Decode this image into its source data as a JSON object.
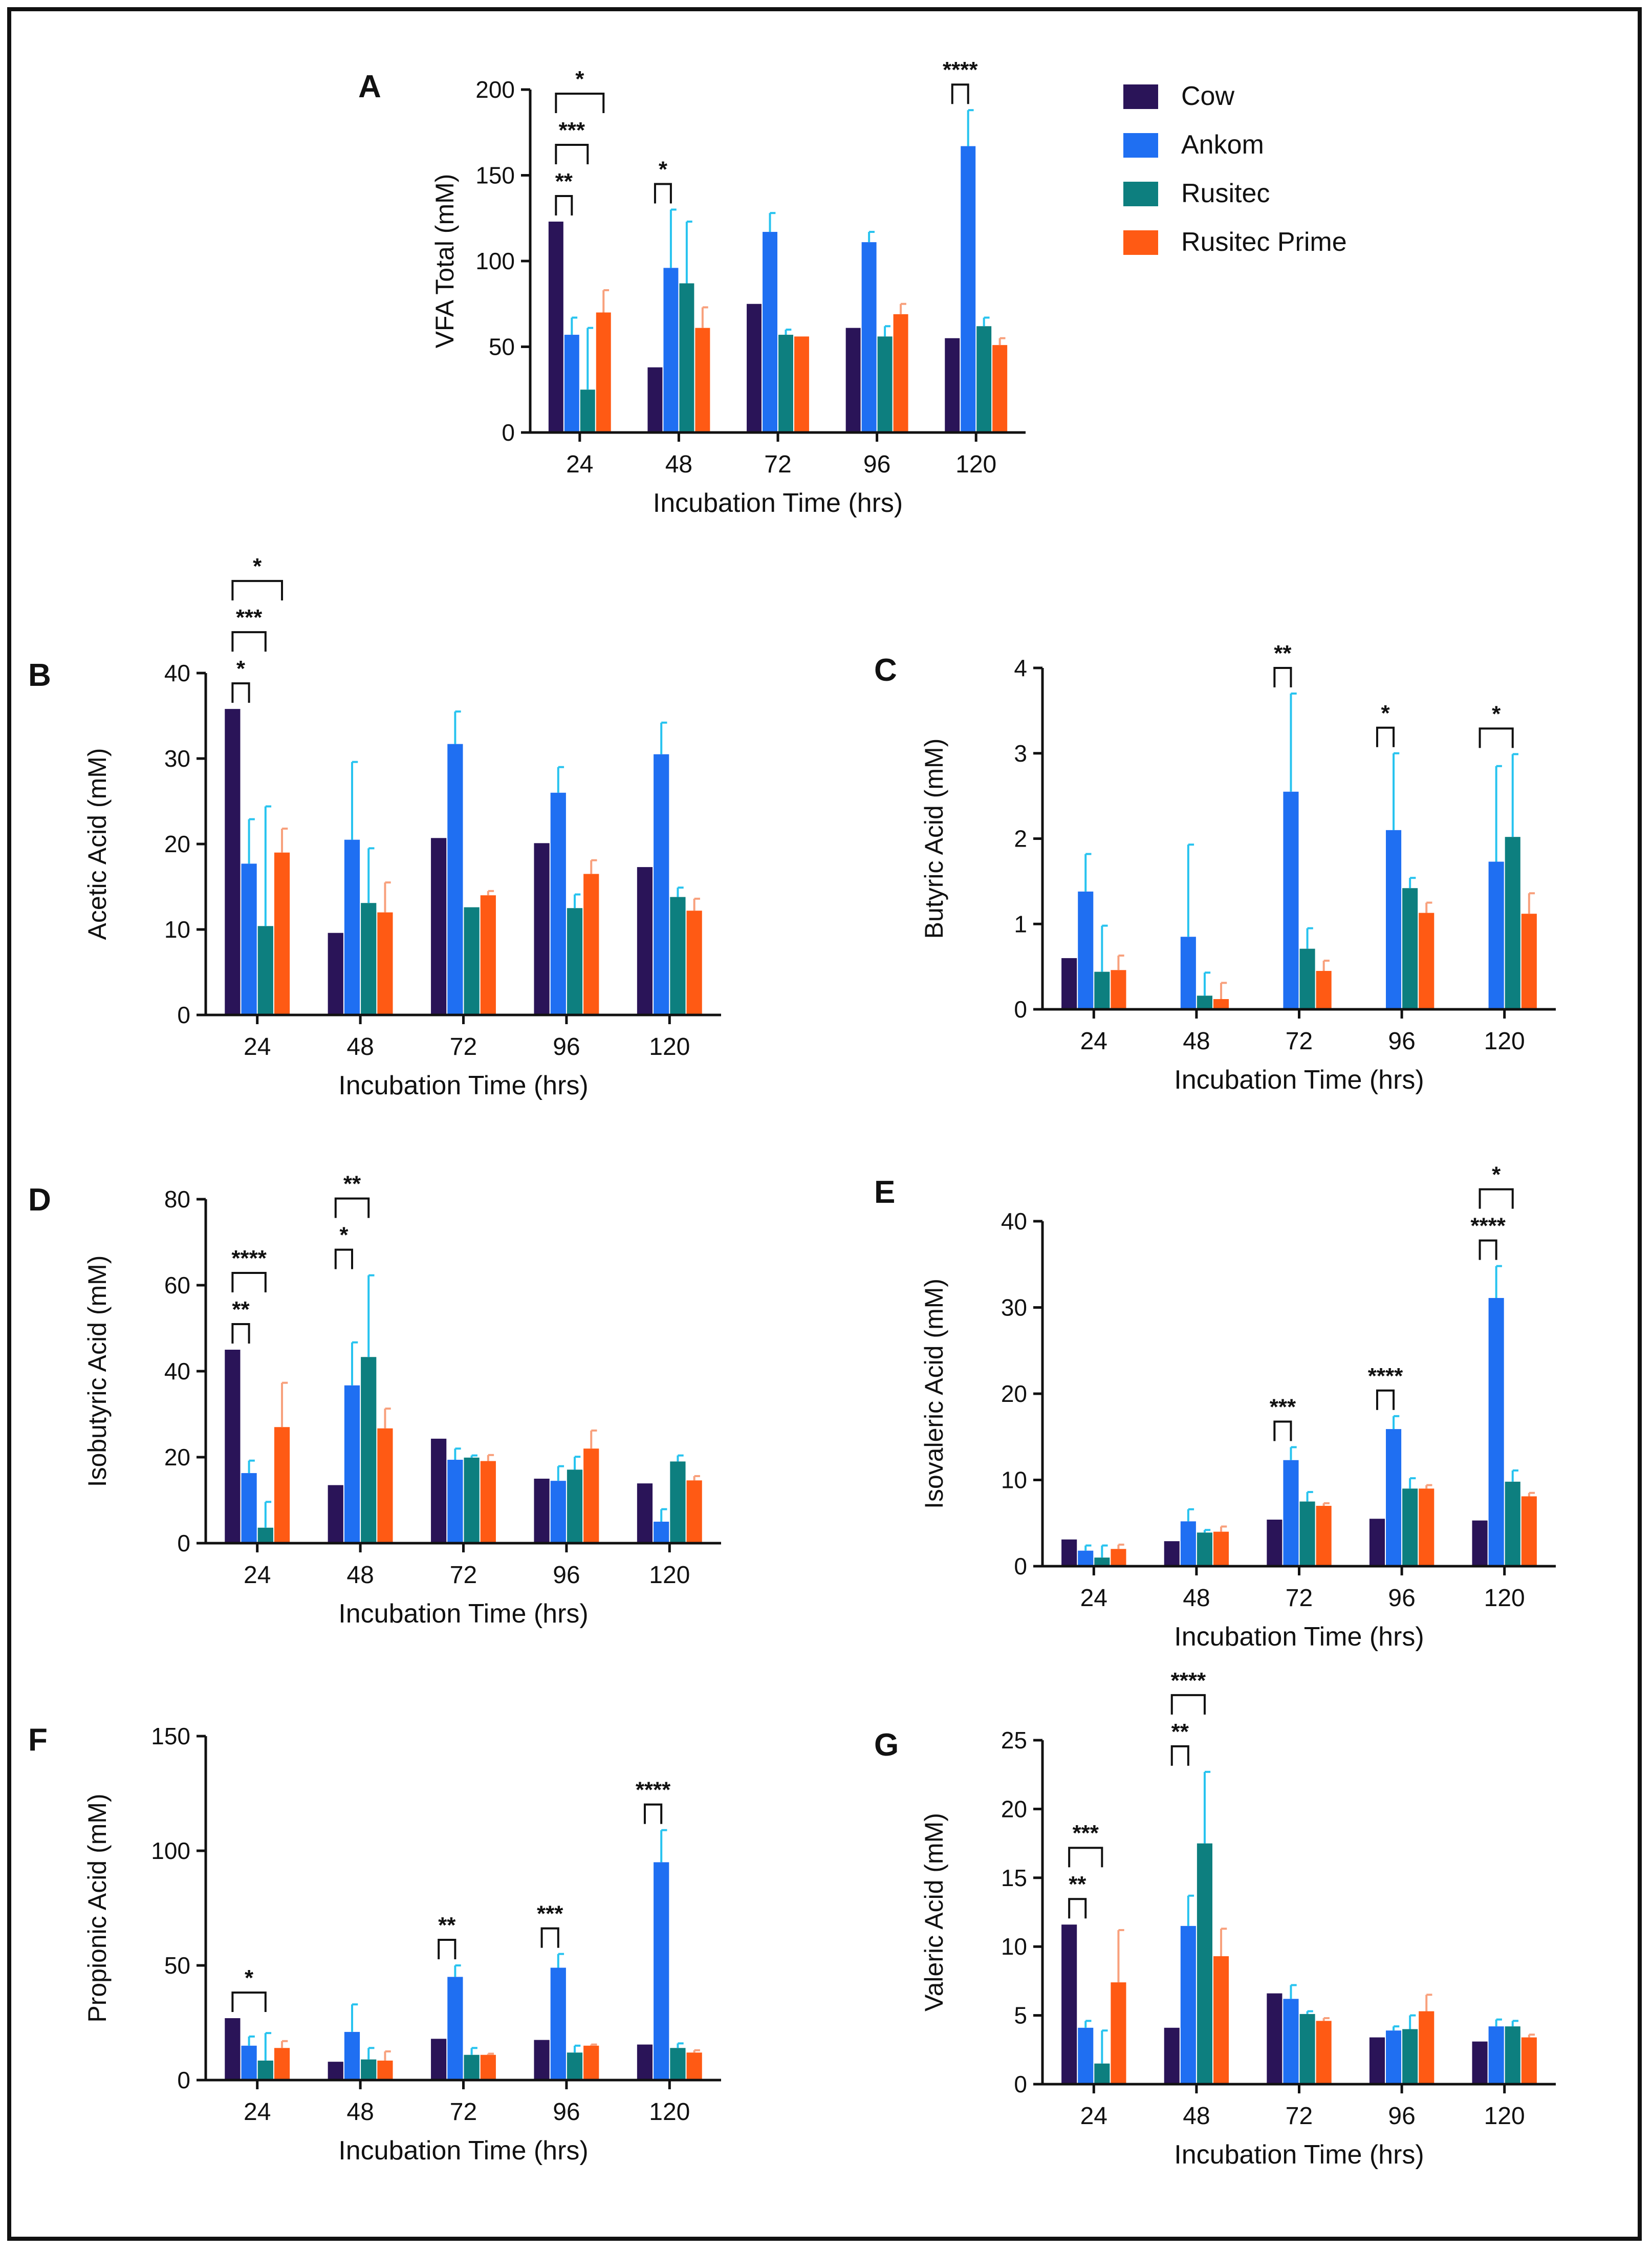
{
  "groups": [
    "Cow",
    "Ankom",
    "Rusitec",
    "Rusitec Prime"
  ],
  "colors": [
    "#2a1458",
    "#1f6ff2",
    "#0d7f7f",
    "#ff5a14"
  ],
  "err_colors": [
    "#2a1458",
    "#27c3ef",
    "#27c3ef",
    "#f8a07c"
  ],
  "chart_data": [
    {
      "panel": "A",
      "type": "bar",
      "ylabel": "VFA Total (mM)",
      "xlabel": "Incubation Time (hrs)",
      "categories": [
        "24",
        "48",
        "72",
        "96",
        "120"
      ],
      "ylim": [
        0,
        200
      ],
      "yticks": [
        0,
        50,
        100,
        150,
        200
      ],
      "series": [
        {
          "name": "Cow",
          "values": [
            123,
            38,
            75,
            61,
            55
          ],
          "err": [
            0,
            0,
            0,
            0,
            0
          ]
        },
        {
          "name": "Ankom",
          "values": [
            57,
            96,
            117,
            111,
            167
          ],
          "err": [
            10,
            34,
            11,
            6,
            21
          ]
        },
        {
          "name": "Rusitec",
          "values": [
            25,
            87,
            57,
            56,
            62
          ],
          "err": [
            36,
            36,
            3,
            6,
            5
          ]
        },
        {
          "name": "Rusitec Prime",
          "values": [
            70,
            61,
            56,
            69,
            51
          ],
          "err": [
            13,
            12,
            0,
            6,
            4
          ]
        }
      ],
      "sig": [
        {
          "cat": 0,
          "from": 0,
          "to": 1,
          "level": 0,
          "label": "**"
        },
        {
          "cat": 0,
          "from": 0,
          "to": 2,
          "level": 1,
          "label": "***"
        },
        {
          "cat": 0,
          "from": 0,
          "to": 3,
          "level": 2,
          "label": "*"
        },
        {
          "cat": 1,
          "from": 0,
          "to": 1,
          "level": 0,
          "label": "*"
        },
        {
          "cat": 4,
          "from": 0,
          "to": 1,
          "level": 0,
          "label": "****"
        }
      ]
    },
    {
      "panel": "B",
      "type": "bar",
      "ylabel": "Acetic Acid (mM)",
      "xlabel": "Incubation Time (hrs)",
      "categories": [
        "24",
        "48",
        "72",
        "96",
        "120"
      ],
      "ylim": [
        0,
        40
      ],
      "yticks": [
        0,
        10,
        20,
        30,
        40
      ],
      "series": [
        {
          "name": "Cow",
          "values": [
            35.8,
            9.6,
            20.7,
            20.1,
            17.3
          ],
          "err": [
            0,
            0,
            0,
            0,
            0
          ]
        },
        {
          "name": "Ankom",
          "values": [
            17.7,
            20.5,
            31.7,
            26,
            30.5
          ],
          "err": [
            5.2,
            9.1,
            3.8,
            3,
            3.7
          ]
        },
        {
          "name": "Rusitec",
          "values": [
            10.4,
            13.1,
            12.6,
            12.5,
            13.8
          ],
          "err": [
            14,
            6.4,
            0,
            1.6,
            1.1
          ]
        },
        {
          "name": "Rusitec Prime",
          "values": [
            19,
            12,
            14,
            16.5,
            12.2
          ],
          "err": [
            2.8,
            3.5,
            0.5,
            1.6,
            1.4
          ]
        }
      ],
      "sig": [
        {
          "cat": 0,
          "from": 0,
          "to": 1,
          "level": 0,
          "label": "*"
        },
        {
          "cat": 0,
          "from": 0,
          "to": 2,
          "level": 1,
          "label": "***"
        },
        {
          "cat": 0,
          "from": 0,
          "to": 3,
          "level": 2,
          "label": "*"
        }
      ]
    },
    {
      "panel": "C",
      "type": "bar",
      "ylabel": "Butyric Acid (mM)",
      "xlabel": "Incubation Time (hrs)",
      "categories": [
        "24",
        "48",
        "72",
        "96",
        "120"
      ],
      "ylim": [
        0,
        4
      ],
      "yticks": [
        0,
        1,
        2,
        3,
        4
      ],
      "series": [
        {
          "name": "Cow",
          "values": [
            0.6,
            0,
            0,
            0,
            0
          ],
          "err": [
            0,
            0,
            0,
            0,
            0
          ]
        },
        {
          "name": "Ankom",
          "values": [
            1.38,
            0.85,
            2.55,
            2.1,
            1.73
          ],
          "err": [
            0.44,
            1.08,
            1.15,
            0.9,
            1.12
          ]
        },
        {
          "name": "Rusitec",
          "values": [
            0.44,
            0.16,
            0.71,
            1.42,
            2.02
          ],
          "err": [
            0.54,
            0.27,
            0.24,
            0.12,
            0.97
          ]
        },
        {
          "name": "Rusitec Prime",
          "values": [
            0.46,
            0.12,
            0.45,
            1.13,
            1.12
          ],
          "err": [
            0.17,
            0.19,
            0.12,
            0.12,
            0.24
          ]
        }
      ],
      "sig": [
        {
          "cat": 2,
          "from": 0,
          "to": 1,
          "level": 0,
          "label": "**"
        },
        {
          "cat": 3,
          "from": 0,
          "to": 1,
          "level": 0,
          "label": "*"
        },
        {
          "cat": 4,
          "from": 0,
          "to": 2,
          "level": 0,
          "label": "*"
        }
      ]
    },
    {
      "panel": "D",
      "type": "bar",
      "ylabel": "Isobutyric Acid (mM)",
      "xlabel": "Incubation Time (hrs)",
      "categories": [
        "24",
        "48",
        "72",
        "96",
        "120"
      ],
      "ylim": [
        0,
        80
      ],
      "yticks": [
        0,
        20,
        40,
        60,
        80
      ],
      "series": [
        {
          "name": "Cow",
          "values": [
            45,
            13.5,
            24.3,
            15,
            13.9
          ],
          "err": [
            0,
            0,
            0,
            0,
            0
          ]
        },
        {
          "name": "Ankom",
          "values": [
            16.3,
            36.7,
            19.4,
            14.5,
            5
          ],
          "err": [
            2.9,
            10,
            2.6,
            3.4,
            2.9
          ]
        },
        {
          "name": "Rusitec",
          "values": [
            3.6,
            43.3,
            19.9,
            17.1,
            19
          ],
          "err": [
            6,
            19,
            0.5,
            3,
            1.4
          ]
        },
        {
          "name": "Rusitec Prime",
          "values": [
            27,
            26.7,
            19.1,
            22,
            14.6
          ],
          "err": [
            10.3,
            4.6,
            1.4,
            4.2,
            1
          ]
        }
      ],
      "sig": [
        {
          "cat": 0,
          "from": 0,
          "to": 1,
          "level": 0,
          "label": "**"
        },
        {
          "cat": 0,
          "from": 0,
          "to": 2,
          "level": 1,
          "label": "****"
        },
        {
          "cat": 1,
          "from": 0,
          "to": 1,
          "level": 0,
          "label": "*"
        },
        {
          "cat": 1,
          "from": 0,
          "to": 2,
          "level": 1,
          "label": "**"
        }
      ]
    },
    {
      "panel": "E",
      "type": "bar",
      "ylabel": "Isovaleric Acid (mM)",
      "xlabel": "Incubation Time (hrs)",
      "categories": [
        "24",
        "48",
        "72",
        "96",
        "120"
      ],
      "ylim": [
        0,
        40
      ],
      "yticks": [
        0,
        10,
        20,
        30,
        40
      ],
      "series": [
        {
          "name": "Cow",
          "values": [
            3.1,
            2.9,
            5.4,
            5.5,
            5.3
          ],
          "err": [
            0,
            0,
            0,
            0,
            0
          ]
        },
        {
          "name": "Ankom",
          "values": [
            1.8,
            5.2,
            12.3,
            15.9,
            31.1
          ],
          "err": [
            0.6,
            1.4,
            1.5,
            1.5,
            3.7
          ]
        },
        {
          "name": "Rusitec",
          "values": [
            1,
            3.9,
            7.5,
            9,
            9.8
          ],
          "err": [
            1.4,
            0.3,
            1.1,
            1.2,
            1.3
          ]
        },
        {
          "name": "Rusitec Prime",
          "values": [
            2,
            4,
            7,
            9,
            8.1
          ],
          "err": [
            0.5,
            0.6,
            0.3,
            0.4,
            0.4
          ]
        }
      ],
      "sig": [
        {
          "cat": 2,
          "from": 0,
          "to": 1,
          "level": 0,
          "label": "***"
        },
        {
          "cat": 3,
          "from": 0,
          "to": 1,
          "level": 0,
          "label": "****"
        },
        {
          "cat": 4,
          "from": 0,
          "to": 1,
          "level": 0,
          "label": "****"
        },
        {
          "cat": 4,
          "from": 0,
          "to": 2,
          "level": 1,
          "label": "*"
        }
      ]
    },
    {
      "panel": "F",
      "type": "bar",
      "ylabel": "Propionic Acid (mM)",
      "xlabel": "Incubation Time (hrs)",
      "categories": [
        "24",
        "48",
        "72",
        "96",
        "120"
      ],
      "ylim": [
        0,
        150
      ],
      "yticks": [
        0,
        50,
        100,
        150
      ],
      "series": [
        {
          "name": "Cow",
          "values": [
            27,
            8,
            18,
            17.5,
            15.5
          ],
          "err": [
            0,
            0,
            0,
            0,
            0
          ]
        },
        {
          "name": "Ankom",
          "values": [
            15,
            21,
            45,
            49,
            95
          ],
          "err": [
            4,
            12,
            5,
            6,
            14
          ]
        },
        {
          "name": "Rusitec",
          "values": [
            8.5,
            9,
            11,
            12,
            14
          ],
          "err": [
            12,
            5,
            3,
            3,
            2
          ]
        },
        {
          "name": "Rusitec Prime",
          "values": [
            14,
            8.5,
            11,
            15,
            12
          ],
          "err": [
            3,
            4,
            0.5,
            0.5,
            1
          ]
        }
      ],
      "sig": [
        {
          "cat": 0,
          "from": 0,
          "to": 2,
          "level": 0,
          "label": "*"
        },
        {
          "cat": 2,
          "from": 0,
          "to": 1,
          "level": 0,
          "label": "**"
        },
        {
          "cat": 3,
          "from": 0,
          "to": 1,
          "level": 0,
          "label": "***"
        },
        {
          "cat": 4,
          "from": 0,
          "to": 1,
          "level": 0,
          "label": "****"
        }
      ]
    },
    {
      "panel": "G",
      "type": "bar",
      "ylabel": "Valeric Acid (mM)",
      "xlabel": "Incubation Time (hrs)",
      "categories": [
        "24",
        "48",
        "72",
        "96",
        "120"
      ],
      "ylim": [
        0,
        25
      ],
      "yticks": [
        0,
        5,
        10,
        15,
        20,
        25
      ],
      "series": [
        {
          "name": "Cow",
          "values": [
            11.6,
            4.1,
            6.6,
            3.4,
            3.1
          ],
          "err": [
            0,
            0,
            0,
            0,
            0
          ]
        },
        {
          "name": "Ankom",
          "values": [
            4.1,
            11.5,
            6.2,
            3.9,
            4.2
          ],
          "err": [
            0.5,
            2.2,
            1,
            0.3,
            0.5
          ]
        },
        {
          "name": "Rusitec",
          "values": [
            1.5,
            17.5,
            5.1,
            4,
            4.2
          ],
          "err": [
            2.4,
            5.2,
            0.2,
            1,
            0.4
          ]
        },
        {
          "name": "Rusitec Prime",
          "values": [
            7.4,
            9.3,
            4.6,
            5.3,
            3.4
          ],
          "err": [
            3.8,
            2,
            0.2,
            1.2,
            0.2
          ]
        }
      ],
      "sig": [
        {
          "cat": 0,
          "from": 0,
          "to": 1,
          "level": 0,
          "label": "**"
        },
        {
          "cat": 0,
          "from": 0,
          "to": 2,
          "level": 1,
          "label": "***"
        },
        {
          "cat": 1,
          "from": 0,
          "to": 1,
          "level": 0,
          "label": "**"
        },
        {
          "cat": 1,
          "from": 0,
          "to": 2,
          "level": 1,
          "label": "****"
        }
      ]
    }
  ]
}
